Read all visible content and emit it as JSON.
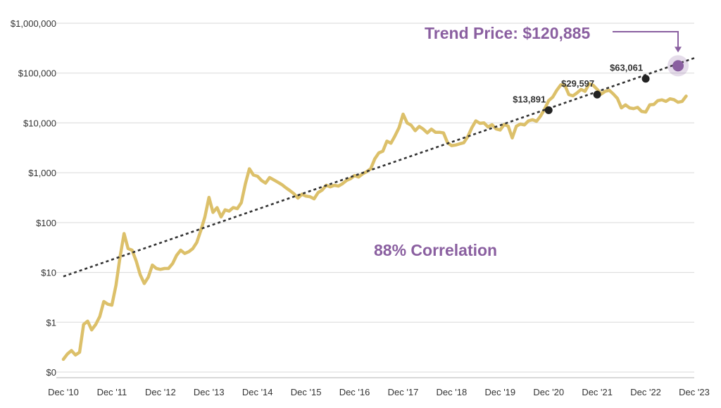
{
  "chart_data": {
    "type": "line",
    "y_scale": "log",
    "ylim": [
      0.1,
      1000000
    ],
    "xlim": [
      "2010-12",
      "2023-12"
    ],
    "grid": true,
    "y_ticks": [
      {
        "value": 1000000,
        "label": "$1,000,000"
      },
      {
        "value": 100000,
        "label": "$100,000"
      },
      {
        "value": 10000,
        "label": "$10,000"
      },
      {
        "value": 1000,
        "label": "$1,000"
      },
      {
        "value": 100,
        "label": "$100"
      },
      {
        "value": 10,
        "label": "$10"
      },
      {
        "value": 1,
        "label": "$1"
      },
      {
        "value": 0.1,
        "label": "$0"
      }
    ],
    "x_ticks": [
      {
        "value": "2010-12",
        "label": "Dec '10"
      },
      {
        "value": "2011-12",
        "label": "Dec '11"
      },
      {
        "value": "2012-12",
        "label": "Dec '12"
      },
      {
        "value": "2013-12",
        "label": "Dec '13"
      },
      {
        "value": "2014-12",
        "label": "Dec '14"
      },
      {
        "value": "2015-12",
        "label": "Dec '15"
      },
      {
        "value": "2016-12",
        "label": "Dec '16"
      },
      {
        "value": "2017-12",
        "label": "Dec '17"
      },
      {
        "value": "2018-12",
        "label": "Dec '18"
      },
      {
        "value": "2019-12",
        "label": "Dec '19"
      },
      {
        "value": "2020-12",
        "label": "Dec '20"
      },
      {
        "value": "2021-12",
        "label": "Dec '21"
      },
      {
        "value": "2022-12",
        "label": "Dec '22"
      },
      {
        "value": "2023-12",
        "label": "Dec '23"
      }
    ],
    "series": [
      {
        "kind": "price",
        "color": "#dcc06a",
        "points": [
          [
            "2010-12",
            0.18
          ],
          [
            "2011-01",
            0.23
          ],
          [
            "2011-02",
            0.27
          ],
          [
            "2011-03",
            0.22
          ],
          [
            "2011-04",
            0.25
          ],
          [
            "2011-05",
            0.9
          ],
          [
            "2011-06",
            1.05
          ],
          [
            "2011-07",
            0.7
          ],
          [
            "2011-08",
            0.9
          ],
          [
            "2011-09",
            1.3
          ],
          [
            "2011-10",
            2.6
          ],
          [
            "2011-11",
            2.3
          ],
          [
            "2011-12",
            2.2
          ],
          [
            "2012-01",
            5.5
          ],
          [
            "2012-02",
            20
          ],
          [
            "2012-03",
            60
          ],
          [
            "2012-04",
            30
          ],
          [
            "2012-05",
            28
          ],
          [
            "2012-06",
            17
          ],
          [
            "2012-07",
            9
          ],
          [
            "2012-08",
            6
          ],
          [
            "2012-09",
            8
          ],
          [
            "2012-10",
            14
          ],
          [
            "2012-11",
            12
          ],
          [
            "2012-12",
            11.5
          ],
          [
            "2013-01",
            12
          ],
          [
            "2013-02",
            12
          ],
          [
            "2013-03",
            15
          ],
          [
            "2013-04",
            22
          ],
          [
            "2013-05",
            28
          ],
          [
            "2013-06",
            24
          ],
          [
            "2013-07",
            26
          ],
          [
            "2013-08",
            30
          ],
          [
            "2013-09",
            40
          ],
          [
            "2013-10",
            70
          ],
          [
            "2013-11",
            130
          ],
          [
            "2013-12",
            320
          ],
          [
            "2014-01",
            160
          ],
          [
            "2014-02",
            200
          ],
          [
            "2014-03",
            130
          ],
          [
            "2014-04",
            180
          ],
          [
            "2014-05",
            170
          ],
          [
            "2014-06",
            200
          ],
          [
            "2014-07",
            190
          ],
          [
            "2014-08",
            250
          ],
          [
            "2014-09",
            600
          ],
          [
            "2014-10",
            1200
          ],
          [
            "2014-11",
            900
          ],
          [
            "2014-12",
            850
          ],
          [
            "2015-01",
            700
          ],
          [
            "2015-02",
            620
          ],
          [
            "2015-03",
            800
          ],
          [
            "2015-04",
            720
          ],
          [
            "2015-05",
            650
          ],
          [
            "2015-06",
            580
          ],
          [
            "2015-07",
            500
          ],
          [
            "2015-08",
            440
          ],
          [
            "2015-09",
            380
          ],
          [
            "2015-10",
            310
          ],
          [
            "2015-11",
            370
          ],
          [
            "2015-12",
            340
          ],
          [
            "2016-01",
            330
          ],
          [
            "2016-02",
            300
          ],
          [
            "2016-03",
            400
          ],
          [
            "2016-04",
            450
          ],
          [
            "2016-05",
            560
          ],
          [
            "2016-06",
            520
          ],
          [
            "2016-07",
            560
          ],
          [
            "2016-08",
            540
          ],
          [
            "2016-09",
            600
          ],
          [
            "2016-10",
            700
          ],
          [
            "2016-11",
            760
          ],
          [
            "2016-12",
            880
          ],
          [
            "2017-01",
            820
          ],
          [
            "2017-02",
            950
          ],
          [
            "2017-03",
            1050
          ],
          [
            "2017-04",
            1200
          ],
          [
            "2017-05",
            1900
          ],
          [
            "2017-06",
            2500
          ],
          [
            "2017-07",
            2700
          ],
          [
            "2017-08",
            4300
          ],
          [
            "2017-09",
            3900
          ],
          [
            "2017-10",
            5500
          ],
          [
            "2017-11",
            8000
          ],
          [
            "2017-12",
            15000
          ],
          [
            "2018-01",
            10000
          ],
          [
            "2018-02",
            9000
          ],
          [
            "2018-03",
            7000
          ],
          [
            "2018-04",
            8500
          ],
          [
            "2018-05",
            7500
          ],
          [
            "2018-06",
            6300
          ],
          [
            "2018-07",
            7500
          ],
          [
            "2018-08",
            6500
          ],
          [
            "2018-09",
            6500
          ],
          [
            "2018-10",
            6300
          ],
          [
            "2018-11",
            4000
          ],
          [
            "2018-12",
            3500
          ],
          [
            "2019-01",
            3600
          ],
          [
            "2019-02",
            3800
          ],
          [
            "2019-03",
            4000
          ],
          [
            "2019-04",
            5300
          ],
          [
            "2019-05",
            8000
          ],
          [
            "2019-06",
            11000
          ],
          [
            "2019-07",
            9800
          ],
          [
            "2019-08",
            10000
          ],
          [
            "2019-09",
            8300
          ],
          [
            "2019-10",
            9200
          ],
          [
            "2019-11",
            7600
          ],
          [
            "2019-12",
            7200
          ],
          [
            "2020-01",
            9300
          ],
          [
            "2020-02",
            8600
          ],
          [
            "2020-03",
            5000
          ],
          [
            "2020-04",
            8600
          ],
          [
            "2020-05",
            9500
          ],
          [
            "2020-06",
            9100
          ],
          [
            "2020-07",
            11000
          ],
          [
            "2020-08",
            11600
          ],
          [
            "2020-09",
            10800
          ],
          [
            "2020-10",
            13700
          ],
          [
            "2020-11",
            19000
          ],
          [
            "2020-12",
            28000
          ],
          [
            "2021-01",
            33000
          ],
          [
            "2021-02",
            45000
          ],
          [
            "2021-03",
            58000
          ],
          [
            "2021-04",
            57000
          ],
          [
            "2021-05",
            37000
          ],
          [
            "2021-06",
            35000
          ],
          [
            "2021-07",
            40000
          ],
          [
            "2021-08",
            47000
          ],
          [
            "2021-09",
            43000
          ],
          [
            "2021-10",
            61000
          ],
          [
            "2021-11",
            57000
          ],
          [
            "2021-12",
            47000
          ],
          [
            "2022-01",
            38000
          ],
          [
            "2022-02",
            43000
          ],
          [
            "2022-03",
            45000
          ],
          [
            "2022-04",
            38000
          ],
          [
            "2022-05",
            31000
          ],
          [
            "2022-06",
            20000
          ],
          [
            "2022-07",
            23000
          ],
          [
            "2022-08",
            20000
          ],
          [
            "2022-09",
            19400
          ],
          [
            "2022-10",
            20500
          ],
          [
            "2022-11",
            17000
          ],
          [
            "2022-12",
            16500
          ],
          [
            "2023-01",
            23000
          ],
          [
            "2023-02",
            23500
          ],
          [
            "2023-03",
            28000
          ],
          [
            "2023-04",
            29000
          ],
          [
            "2023-05",
            27000
          ],
          [
            "2023-06",
            30500
          ],
          [
            "2023-07",
            29200
          ],
          [
            "2023-08",
            26000
          ],
          [
            "2023-09",
            27000
          ],
          [
            "2023-10",
            34500
          ]
        ]
      },
      {
        "kind": "trend",
        "color": "#333333",
        "dashed": true,
        "points": [
          [
            "2010-12",
            8.3
          ],
          [
            "2023-12",
            200000
          ]
        ]
      }
    ],
    "markers": [
      {
        "x": "2020-12",
        "y": 18000,
        "label": "$13,891",
        "color": "#222222"
      },
      {
        "x": "2021-12",
        "y": 37000,
        "label": "$29,597",
        "color": "#222222"
      },
      {
        "x": "2022-12",
        "y": 77000,
        "label": "$63,061",
        "color": "#222222"
      },
      {
        "x": "2023-08",
        "y": 140000,
        "label": "",
        "color": "#8a5fa0",
        "highlight": true
      }
    ],
    "annotations": {
      "headline": "Trend Price: $120,885",
      "headline_color": "#8a5fa0",
      "correlation": "88% Correlation",
      "correlation_color": "#8a5fa0"
    }
  }
}
